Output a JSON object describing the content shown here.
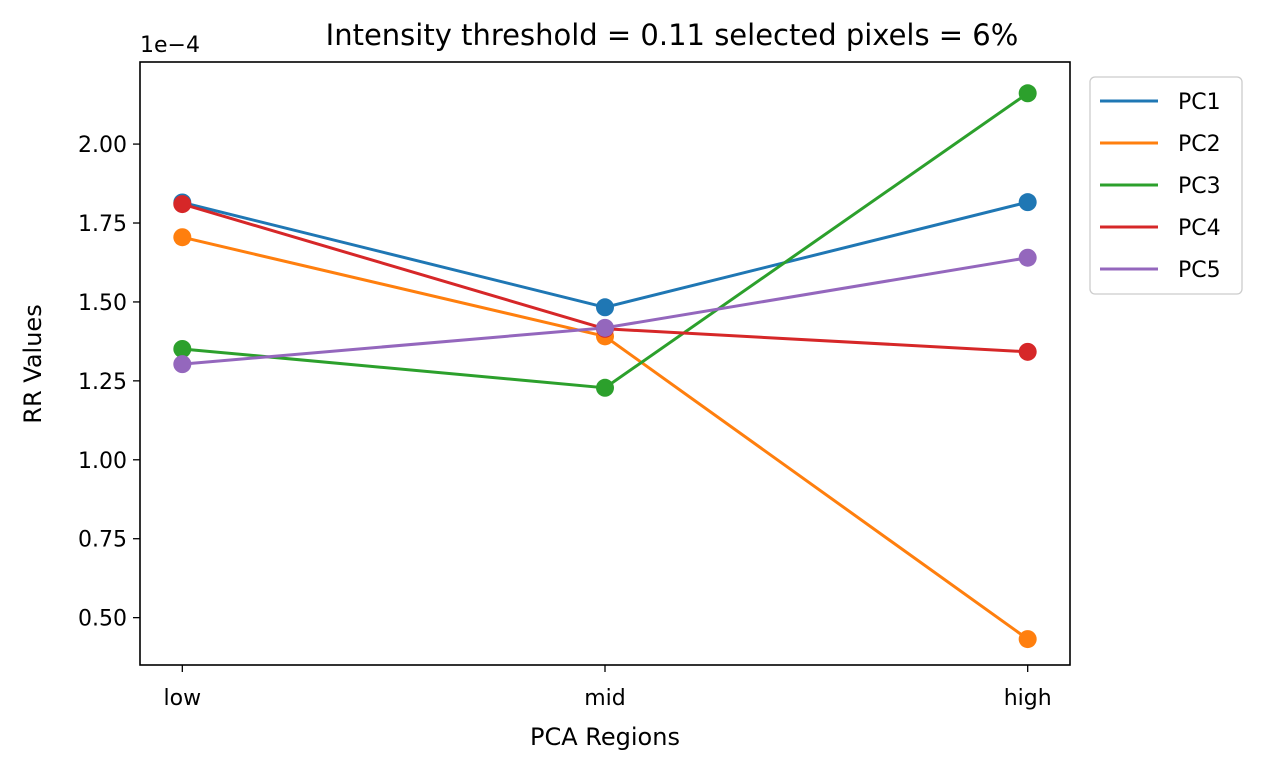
{
  "chart_data": {
    "type": "line",
    "title": "Intensity threshold = 0.11 selected pixels = 6%",
    "xlabel": "PCA Regions",
    "ylabel": "RR Values",
    "y_scale_label": "1e−4",
    "categories": [
      "low",
      "mid",
      "high"
    ],
    "ylim": [
      0.35,
      2.26
    ],
    "yticks": [
      0.5,
      0.75,
      1.0,
      1.25,
      1.5,
      1.75,
      2.0
    ],
    "ytick_labels": [
      "0.50",
      "0.75",
      "1.00",
      "1.25",
      "1.50",
      "1.75",
      "2.00"
    ],
    "grid": false,
    "legend_position": "outside-top-right",
    "markers": true,
    "series": [
      {
        "name": "PC1",
        "color": "#1f77b4",
        "values": [
          1.815,
          1.483,
          1.816
        ]
      },
      {
        "name": "PC2",
        "color": "#ff7f0e",
        "values": [
          1.705,
          1.391,
          0.432
        ]
      },
      {
        "name": "PC3",
        "color": "#2ca02c",
        "values": [
          1.351,
          1.228,
          2.161
        ]
      },
      {
        "name": "PC4",
        "color": "#d62728",
        "values": [
          1.81,
          1.415,
          1.342
        ]
      },
      {
        "name": "PC5",
        "color": "#9467bd",
        "values": [
          1.303,
          1.418,
          1.64
        ]
      }
    ]
  }
}
